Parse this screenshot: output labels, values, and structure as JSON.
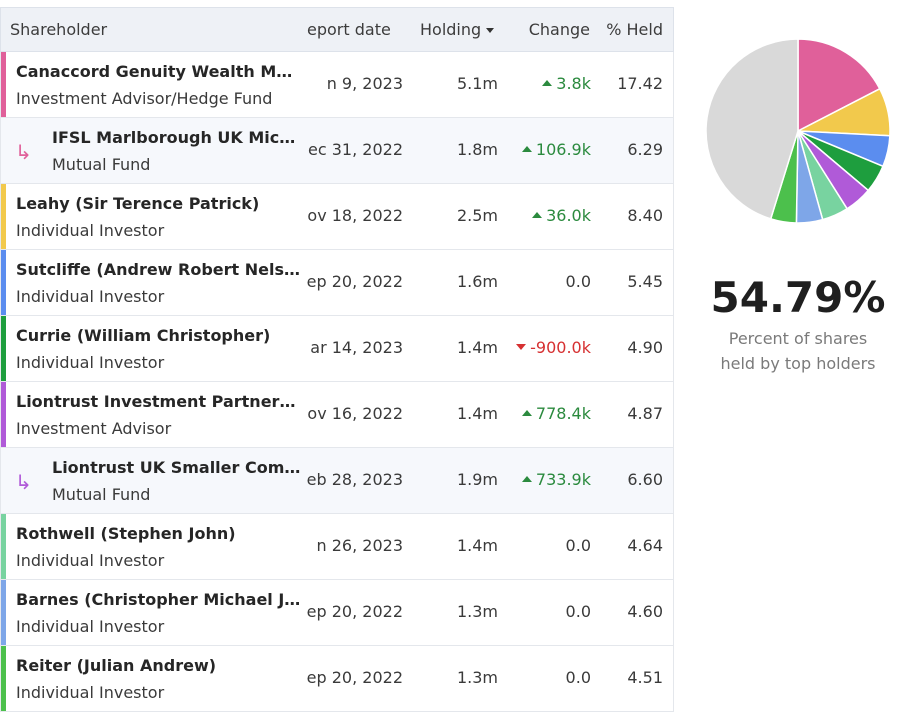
{
  "header": {
    "shareholder": "Shareholder",
    "report_date": "eport date",
    "holding": "Holding",
    "change": "Change",
    "held": "% Held"
  },
  "rows": [
    {
      "name": "Canaccord Genuity Wealth Mana...",
      "type": "Investment Advisor/Hedge Fund",
      "date": "n 9, 2023",
      "holding": "5.1m",
      "change": "3.8k",
      "dir": "up",
      "held": "17.42",
      "color": "#e0609a",
      "sub": false
    },
    {
      "name": "IFSL Marlborough UK Micro-...",
      "type": "Mutual Fund",
      "date": "ec 31, 2022",
      "holding": "1.8m",
      "change": "106.9k",
      "dir": "up",
      "held": "6.29",
      "color": "#e0609a",
      "sub": true
    },
    {
      "name": "Leahy (Sir Terence Patrick)",
      "type": "Individual Investor",
      "date": "ov 18, 2022",
      "holding": "2.5m",
      "change": "36.0k",
      "dir": "up",
      "held": "8.40",
      "color": "#f2c94c",
      "sub": false
    },
    {
      "name": "Sutcliffe (Andrew Robert Nelson)",
      "type": "Individual Investor",
      "date": "ep 20, 2022",
      "holding": "1.6m",
      "change": "0.0",
      "dir": "zero",
      "held": "5.45",
      "color": "#5b8def",
      "sub": false
    },
    {
      "name": "Currie (William Christopher)",
      "type": "Individual Investor",
      "date": "ar 14, 2023",
      "holding": "1.4m",
      "change": "-900.0k",
      "dir": "down",
      "held": "4.90",
      "color": "#1e9e3e",
      "sub": false
    },
    {
      "name": "Liontrust Investment Partners LLP",
      "type": "Investment Advisor",
      "date": "ov 16, 2022",
      "holding": "1.4m",
      "change": "778.4k",
      "dir": "up",
      "held": "4.87",
      "color": "#b05ad8",
      "sub": false
    },
    {
      "name": "Liontrust UK Smaller Compan...",
      "type": "Mutual Fund",
      "date": "eb 28, 2023",
      "holding": "1.9m",
      "change": "733.9k",
      "dir": "up",
      "held": "6.60",
      "color": "#b05ad8",
      "sub": true
    },
    {
      "name": "Rothwell (Stephen John)",
      "type": "Individual Investor",
      "date": "n 26, 2023",
      "holding": "1.4m",
      "change": "0.0",
      "dir": "zero",
      "held": "4.64",
      "color": "#78d3a0",
      "sub": false
    },
    {
      "name": "Barnes (Christopher Michael Jack ...",
      "type": "Individual Investor",
      "date": "ep 20, 2022",
      "holding": "1.3m",
      "change": "0.0",
      "dir": "zero",
      "held": "4.60",
      "color": "#7ea6e8",
      "sub": false
    },
    {
      "name": "Reiter (Julian Andrew)",
      "type": "Individual Investor",
      "date": "ep 20, 2022",
      "holding": "1.3m",
      "change": "0.0",
      "dir": "zero",
      "held": "4.51",
      "color": "#4cc04c",
      "sub": false
    }
  ],
  "summary": {
    "percent": "54.79%",
    "line1": "Percent of shares",
    "line2": "held by top holders"
  },
  "pie": [
    {
      "value": 17.42,
      "color": "#e0609a"
    },
    {
      "value": 8.4,
      "color": "#f2c94c"
    },
    {
      "value": 5.45,
      "color": "#5b8def"
    },
    {
      "value": 4.9,
      "color": "#1e9e3e"
    },
    {
      "value": 4.87,
      "color": "#b05ad8"
    },
    {
      "value": 4.64,
      "color": "#78d3a0"
    },
    {
      "value": 4.6,
      "color": "#7ea6e8"
    },
    {
      "value": 4.51,
      "color": "#4cc04c"
    },
    {
      "value": 45.21,
      "color": "#d9d9d9"
    }
  ]
}
